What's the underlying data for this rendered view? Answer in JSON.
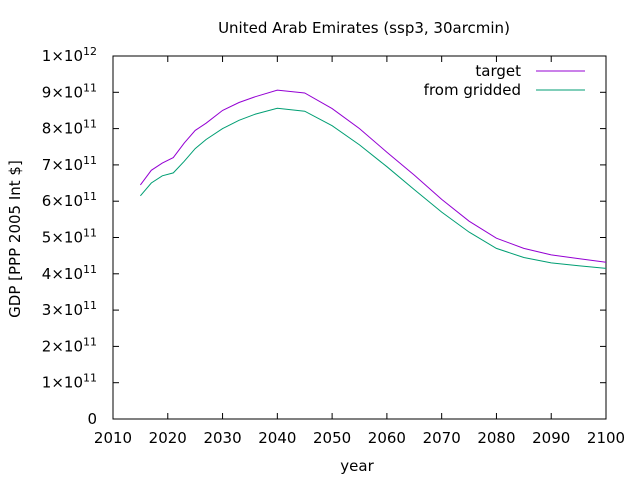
{
  "chart_data": {
    "type": "line",
    "title": "United Arab Emirates (ssp3, 30arcmin)",
    "xlabel": "year",
    "ylabel": "GDP [PPP 2005 Int $]",
    "xlim": [
      2010,
      2100
    ],
    "ylim": [
      0,
      1000000000000
    ],
    "x_ticks": [
      "2010",
      "2020",
      "2030",
      "2040",
      "2050",
      "2060",
      "2070",
      "2080",
      "2090",
      "2100"
    ],
    "y_ticks": [
      {
        "value": 0,
        "mantissa": "0",
        "exp": ""
      },
      {
        "value": 100000000000,
        "mantissa": "1×10",
        "exp": "11"
      },
      {
        "value": 200000000000,
        "mantissa": "2×10",
        "exp": "11"
      },
      {
        "value": 300000000000,
        "mantissa": "3×10",
        "exp": "11"
      },
      {
        "value": 400000000000,
        "mantissa": "4×10",
        "exp": "11"
      },
      {
        "value": 500000000000,
        "mantissa": "5×10",
        "exp": "11"
      },
      {
        "value": 600000000000,
        "mantissa": "6×10",
        "exp": "11"
      },
      {
        "value": 700000000000,
        "mantissa": "7×10",
        "exp": "11"
      },
      {
        "value": 800000000000,
        "mantissa": "8×10",
        "exp": "11"
      },
      {
        "value": 900000000000,
        "mantissa": "9×10",
        "exp": "11"
      },
      {
        "value": 1000000000000,
        "mantissa": "1×10",
        "exp": "12"
      }
    ],
    "legend_position": "top-right",
    "grid": false,
    "x": [
      2015,
      2017,
      2019,
      2021,
      2023,
      2025,
      2027,
      2030,
      2033,
      2036,
      2040,
      2045,
      2050,
      2055,
      2060,
      2065,
      2070,
      2075,
      2080,
      2085,
      2090,
      2095,
      2100
    ],
    "series": [
      {
        "name": "target",
        "color": "#9400d3",
        "values": [
          645000000000.0,
          685000000000.0,
          705000000000.0,
          720000000000.0,
          760000000000.0,
          795000000000.0,
          815000000000.0,
          850000000000.0,
          872000000000.0,
          888000000000.0,
          906000000000.0,
          898000000000.0,
          855000000000.0,
          800000000000.0,
          735000000000.0,
          672000000000.0,
          605000000000.0,
          545000000000.0,
          498000000000.0,
          470000000000.0,
          452000000000.0,
          442000000000.0,
          432000000000.0
        ]
      },
      {
        "name": "from gridded",
        "color": "#009e73",
        "values": [
          615000000000.0,
          650000000000.0,
          670000000000.0,
          678000000000.0,
          710000000000.0,
          745000000000.0,
          770000000000.0,
          800000000000.0,
          823000000000.0,
          840000000000.0,
          856000000000.0,
          848000000000.0,
          808000000000.0,
          755000000000.0,
          695000000000.0,
          632000000000.0,
          570000000000.0,
          515000000000.0,
          470000000000.0,
          445000000000.0,
          430000000000.0,
          422000000000.0,
          415000000000.0
        ]
      }
    ]
  }
}
